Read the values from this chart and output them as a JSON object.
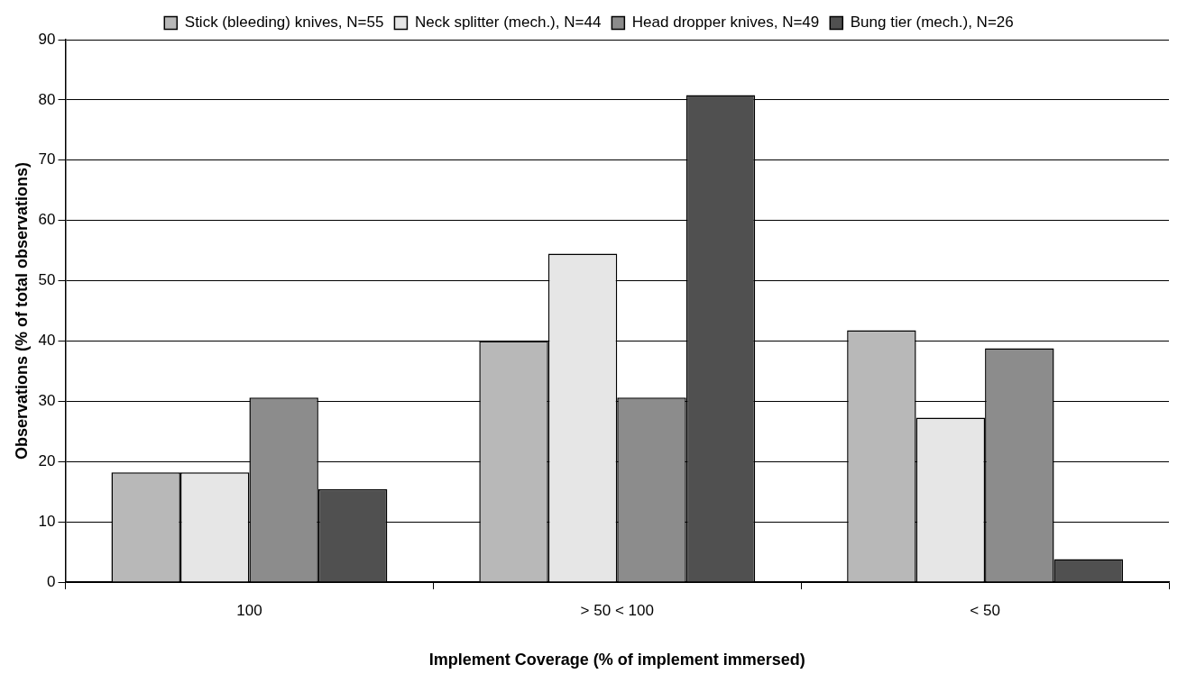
{
  "chart_data": {
    "type": "bar",
    "xlabel": "Implement Coverage (% of implement immersed)",
    "ylabel": "Observations (% of total observations)",
    "categories": [
      "100",
      "> 50 < 100",
      "< 50"
    ],
    "series": [
      {
        "name": "Stick (bleeding) knives, N=55",
        "color": "#b8b8b8",
        "values": [
          18.2,
          40,
          41.8
        ]
      },
      {
        "name": "Neck splitter (mech.), N=44",
        "color": "#e6e6e6",
        "values": [
          18.2,
          54.5,
          27.3
        ]
      },
      {
        "name": "Head dropper knives, N=49",
        "color": "#8c8c8c",
        "values": [
          30.6,
          30.6,
          38.8
        ]
      },
      {
        "name": "Bung tier (mech.), N=26",
        "color": "#505050",
        "values": [
          15.4,
          80.8,
          3.8
        ]
      }
    ],
    "ylim": [
      0,
      90
    ],
    "yticks": [
      0,
      10,
      20,
      30,
      40,
      50,
      60,
      70,
      80,
      90
    ],
    "grid": "y",
    "legend": "top"
  }
}
